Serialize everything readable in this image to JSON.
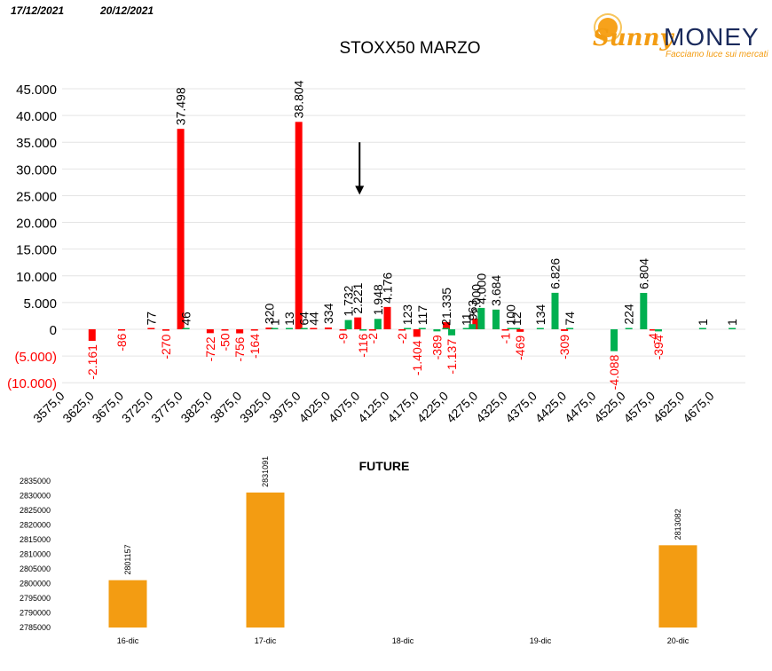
{
  "header": {
    "date_left": "17/12/2021",
    "date_right": "20/12/2021",
    "logo_sunny": "Sunny",
    "logo_money": "MONEY",
    "logo_tagline": "Facciamo luce sui mercati"
  },
  "chart_data": [
    {
      "type": "bar",
      "title": "STOXX50 MARZO",
      "categories": [
        "3575,0",
        "3625,0",
        "3675,0",
        "3725,0",
        "3775,0",
        "3825,0",
        "3875,0",
        "3925,0",
        "3975,0",
        "4025,0",
        "4075,0",
        "4125,0",
        "4175,0",
        "4225,0",
        "4275,0",
        "4325,0",
        "4375,0",
        "4425,0",
        "4475,0",
        "4525,0",
        "4575,0",
        "4625,0",
        "4675,0"
      ],
      "y_tick_labels": [
        "45.000",
        "40.000",
        "35.000",
        "30.000",
        "25.000",
        "20.000",
        "15.000",
        "10.000",
        "5.000",
        "0",
        "(5.000)",
        "(10.000)"
      ],
      "ylim": [
        -10000,
        45000
      ],
      "grid": true,
      "series": [
        {
          "color": "#ff0000",
          "points": [
            {
              "x": 3625,
              "y": -2161,
              "label": "-2.161"
            },
            {
              "x": 3675,
              "y": -86,
              "label": "-86"
            },
            {
              "x": 3725,
              "y": 77,
              "label": "77"
            },
            {
              "x": 3750,
              "y": -270,
              "label": "-270"
            },
            {
              "x": 3775,
              "y": 37498,
              "label": "37.498"
            },
            {
              "x": 3825,
              "y": -722,
              "label": "-722"
            },
            {
              "x": 3850,
              "y": -50,
              "label": "-50"
            },
            {
              "x": 3875,
              "y": -756,
              "label": "-756"
            },
            {
              "x": 3900,
              "y": -164,
              "label": "-164"
            },
            {
              "x": 3925,
              "y": 320,
              "label": "320"
            },
            {
              "x": 3975,
              "y": 38804,
              "label": "38.804"
            },
            {
              "x": 4000,
              "y": 44,
              "label": "44"
            },
            {
              "x": 4025,
              "y": 334,
              "label": "334"
            },
            {
              "x": 4050,
              "y": -9,
              "label": "-9"
            },
            {
              "x": 4075,
              "y": 2221,
              "label": "2.221"
            },
            {
              "x": 4100,
              "y": -2,
              "label": "-2"
            },
            {
              "x": 4125,
              "y": 4176,
              "label": "4.176"
            },
            {
              "x": 4150,
              "y": -2,
              "label": "-2"
            },
            {
              "x": 4175,
              "y": -1404,
              "label": "-1.404"
            },
            {
              "x": 4225,
              "y": 1335,
              "label": "1.335"
            },
            {
              "x": 4275,
              "y": 2000,
              "label": "2.000"
            },
            {
              "x": 4325,
              "y": -1,
              "label": "-1"
            },
            {
              "x": 4350,
              "y": -469,
              "label": "-469"
            },
            {
              "x": 4425,
              "y": -309,
              "label": "-309"
            },
            {
              "x": 4575,
              "y": -4,
              "label": "-4"
            }
          ]
        },
        {
          "color": "#00b050",
          "points": [
            {
              "x": 3775,
              "y": 46,
              "label": "46"
            },
            {
              "x": 3925,
              "y": 1,
              "label": "1"
            },
            {
              "x": 3950,
              "y": 13,
              "label": "13"
            },
            {
              "x": 3975,
              "y": 64,
              "label": "64"
            },
            {
              "x": 4050,
              "y": 1732,
              "label": "1.732"
            },
            {
              "x": 4075,
              "y": -116,
              "label": "-116"
            },
            {
              "x": 4100,
              "y": 1948,
              "label": "1.948"
            },
            {
              "x": 4150,
              "y": 123,
              "label": "123"
            },
            {
              "x": 4175,
              "y": 117,
              "label": "117"
            },
            {
              "x": 4200,
              "y": -389,
              "label": "-389"
            },
            {
              "x": 4215,
              "y": 2,
              "label": "2"
            },
            {
              "x": 4225,
              "y": -1137,
              "label": "-1.137"
            },
            {
              "x": 4250,
              "y": 11,
              "label": "11"
            },
            {
              "x": 4260,
              "y": 963,
              "label": "963"
            },
            {
              "x": 4275,
              "y": 4000,
              "label": "4.000"
            },
            {
              "x": 4300,
              "y": 3684,
              "label": "3.684"
            },
            {
              "x": 4325,
              "y": 100,
              "label": "100"
            },
            {
              "x": 4335,
              "y": 12,
              "label": "12"
            },
            {
              "x": 4375,
              "y": 134,
              "label": "134"
            },
            {
              "x": 4400,
              "y": 6826,
              "label": "6.826"
            },
            {
              "x": 4425,
              "y": 74,
              "label": "74"
            },
            {
              "x": 4500,
              "y": -4088,
              "label": "-4.088"
            },
            {
              "x": 4525,
              "y": 224,
              "label": "224"
            },
            {
              "x": 4550,
              "y": 6804,
              "label": "6.804"
            },
            {
              "x": 4575,
              "y": -394,
              "label": "-394"
            },
            {
              "x": 4650,
              "y": 1,
              "label": "1"
            },
            {
              "x": 4700,
              "y": 1,
              "label": "1"
            }
          ]
        }
      ],
      "annotation": {
        "type": "arrow-down",
        "x": 4075,
        "y_from": 35000,
        "y_to": 25500
      }
    },
    {
      "type": "bar",
      "title": "FUTURE",
      "categories": [
        "16-dic",
        "17-dic",
        "18-dic",
        "19-dic",
        "20-dic"
      ],
      "values": [
        2801157,
        2831091,
        null,
        null,
        2813082
      ],
      "y_tick_labels": [
        "2835000",
        "2830000",
        "2825000",
        "2820000",
        "2815000",
        "2810000",
        "2805000",
        "2800000",
        "2795000",
        "2790000",
        "2785000"
      ],
      "ylim": [
        2785000,
        2835000
      ],
      "color": "#f39c12"
    }
  ]
}
